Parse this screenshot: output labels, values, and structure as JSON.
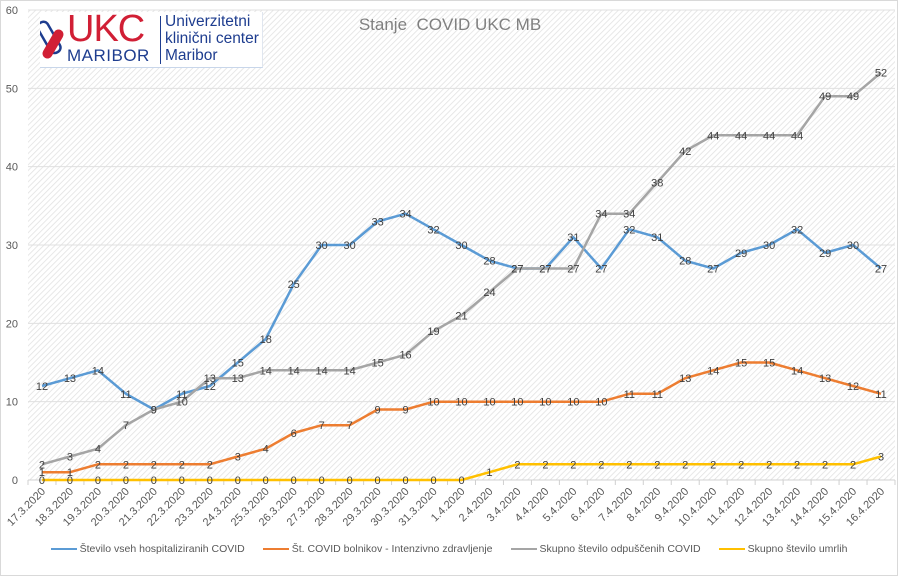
{
  "chart_data": {
    "type": "line",
    "title": "Stanje  COVID UKC MB",
    "xlabel": "",
    "ylabel": "",
    "ylim": [
      0,
      60
    ],
    "yticks": [
      0,
      10,
      20,
      30,
      40,
      50,
      60
    ],
    "grid": true,
    "legend_position": "bottom",
    "categories": [
      "17.3.2020",
      "18.3.2020",
      "19.3.2020",
      "20.3.2020",
      "21.3.2020",
      "22.3.2020",
      "23.3.2020",
      "24.3.2020",
      "25.3.2020",
      "26.3.2020",
      "27.3.2020",
      "28.3.2020",
      "29.3.2020",
      "30.3.2020",
      "31.3.2020",
      "1.4.2020",
      "2.4.2020",
      "3.4.2020",
      "4.4.2020",
      "5.4.2020",
      "6.4.2020",
      "7.4.2020",
      "8.4.2020",
      "9.4.2020",
      "10.4.2020",
      "11.4.2020",
      "12.4.2020",
      "13.4.2020",
      "14.4.2020",
      "15.4.2020",
      "16.4.2020"
    ],
    "series": [
      {
        "name": "Število vseh hospitaliziranih COVID",
        "color": "#5B9BD5",
        "values": [
          12,
          13,
          14,
          11,
          9,
          11,
          12,
          15,
          18,
          25,
          30,
          30,
          33,
          34,
          32,
          30,
          28,
          27,
          27,
          31,
          27,
          32,
          31,
          28,
          27,
          29,
          30,
          32,
          29,
          30,
          27
        ]
      },
      {
        "name": "Št. COVID bolnikov - Intenzivno zdravljenje",
        "color": "#ED7D31",
        "values": [
          1,
          1,
          2,
          2,
          2,
          2,
          2,
          3,
          4,
          6,
          7,
          7,
          9,
          9,
          10,
          10,
          10,
          10,
          10,
          10,
          10,
          11,
          11,
          13,
          14,
          15,
          15,
          14,
          13,
          12,
          11
        ]
      },
      {
        "name": "Skupno število odpuščenih COVID",
        "color": "#A5A5A5",
        "values": [
          2,
          3,
          4,
          7,
          9,
          10,
          13,
          13,
          14,
          14,
          14,
          14,
          15,
          16,
          19,
          21,
          24,
          27,
          27,
          27,
          34,
          34,
          38,
          42,
          44,
          44,
          44,
          44,
          49,
          49,
          52
        ]
      },
      {
        "name": "Skupno število umrlih",
        "color": "#FFC000",
        "values": [
          0,
          0,
          0,
          0,
          0,
          0,
          0,
          0,
          0,
          0,
          0,
          0,
          0,
          0,
          0,
          0,
          1,
          2,
          2,
          2,
          2,
          2,
          2,
          2,
          2,
          2,
          2,
          2,
          2,
          2,
          3
        ]
      }
    ]
  },
  "logo": {
    "brand": "UKC",
    "city": "MARIBOR",
    "line1": "Univerzitetni",
    "line2": "klinični center",
    "line3": "Maribor"
  }
}
